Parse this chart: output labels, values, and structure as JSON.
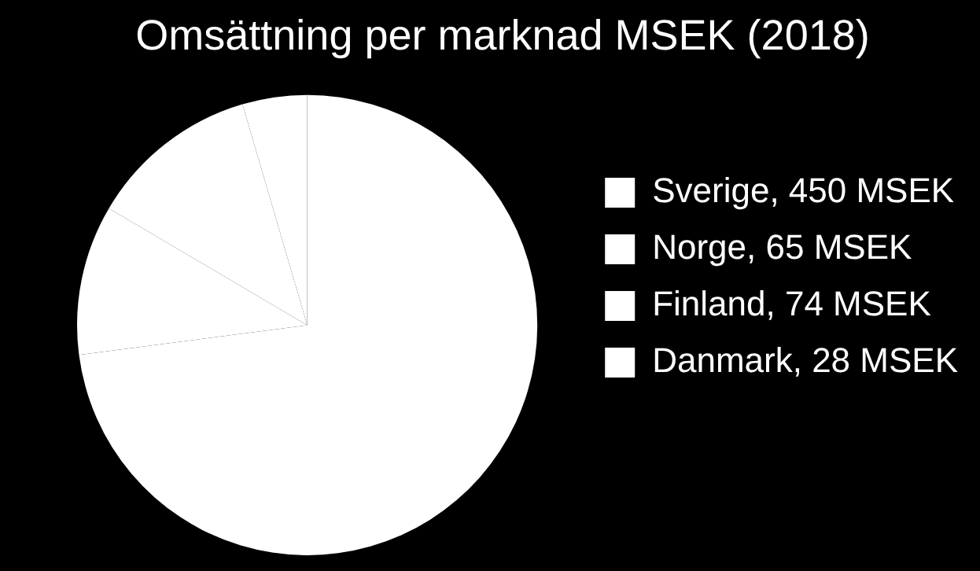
{
  "chart_data": {
    "type": "pie",
    "title": "Omsättning per marknad MSEK (2018)",
    "categories": [
      "Sverige, 450 MSEK",
      "Norge, 65 MSEK",
      "Finland, 74 MSEK",
      "Danmark, 28 MSEK"
    ],
    "values": [
      450,
      65,
      74,
      28
    ],
    "colors": [
      "#ffffff",
      "#ffffff",
      "#ffffff",
      "#ffffff"
    ],
    "legend": "right"
  }
}
